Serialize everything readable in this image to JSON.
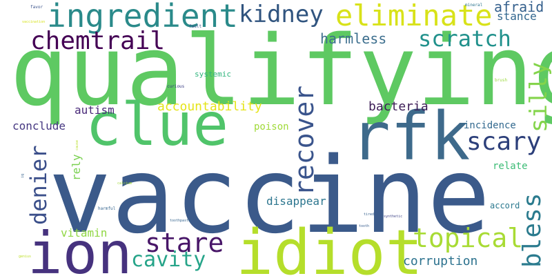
{
  "words": [
    {
      "text": "vaccine",
      "color": "#3b5a8a"
    },
    {
      "text": "qualifying",
      "color": "#5ec962"
    },
    {
      "text": "clue",
      "color": "#50c46a"
    },
    {
      "text": "rfk",
      "color": "#3e6a8b"
    },
    {
      "text": "idiot",
      "color": "#b5de2b"
    },
    {
      "text": "ion",
      "color": "#46327e"
    },
    {
      "text": "ingredient",
      "color": "#2a8a8a"
    },
    {
      "text": "eliminate",
      "color": "#d8e219"
    },
    {
      "text": "kidney",
      "color": "#30547f"
    },
    {
      "text": "chemtrail",
      "color": "#440154"
    },
    {
      "text": "scratch",
      "color": "#21918c"
    },
    {
      "text": "recover",
      "color": "#3a548c"
    },
    {
      "text": "scary",
      "color": "#2c3f7a"
    },
    {
      "text": "silly",
      "color": "#84d44b"
    },
    {
      "text": "bless",
      "color": "#2b7b8e"
    },
    {
      "text": "denier",
      "color": "#3b4f8a"
    },
    {
      "text": "stare",
      "color": "#481668"
    },
    {
      "text": "topical",
      "color": "#a8db34"
    },
    {
      "text": "cavity",
      "color": "#26a489"
    },
    {
      "text": "harmless",
      "color": "#3d6f8e"
    },
    {
      "text": "afraid",
      "color": "#35608d"
    },
    {
      "text": "stance",
      "color": "#31668e"
    },
    {
      "text": "accountability",
      "color": "#e5e419"
    },
    {
      "text": "bacteria",
      "color": "#3c1c56"
    },
    {
      "text": "autism",
      "color": "#482878"
    },
    {
      "text": "conclude",
      "color": "#453781"
    },
    {
      "text": "incidence",
      "color": "#31688e"
    },
    {
      "text": "poison",
      "color": "#a0da39"
    },
    {
      "text": "relate",
      "color": "#3bbb75"
    },
    {
      "text": "rely",
      "color": "#7ad151"
    },
    {
      "text": "disappear",
      "color": "#2b758e"
    },
    {
      "text": "vitamin",
      "color": "#90d743"
    },
    {
      "text": "corruption",
      "color": "#2c728e"
    },
    {
      "text": "accord",
      "color": "#2a788e"
    },
    {
      "text": "systemic",
      "color": "#2fb47c"
    },
    {
      "text": "favor",
      "color": "#3a538b"
    },
    {
      "text": "fault",
      "color": "#3b528b"
    },
    {
      "text": "curious",
      "color": "#31357f"
    },
    {
      "text": "mineral",
      "color": "#2b748e"
    },
    {
      "text": "brush",
      "color": "#9bd93c"
    },
    {
      "text": "vaccination",
      "color": "#d5e21a"
    },
    {
      "text": "cause",
      "color": "#b8de29"
    },
    {
      "text": "iq",
      "color": "#34618d"
    },
    {
      "text": "calcium",
      "color": "#a2da37"
    },
    {
      "text": "harmful",
      "color": "#33638d"
    },
    {
      "text": "toothpaste",
      "color": "#33638d"
    },
    {
      "text": "tired",
      "color": "#355f8d"
    },
    {
      "text": "tooth",
      "color": "#365c8d"
    },
    {
      "text": "synthetic",
      "color": "#404588"
    },
    {
      "text": "genius",
      "color": "#bddf26"
    }
  ]
}
